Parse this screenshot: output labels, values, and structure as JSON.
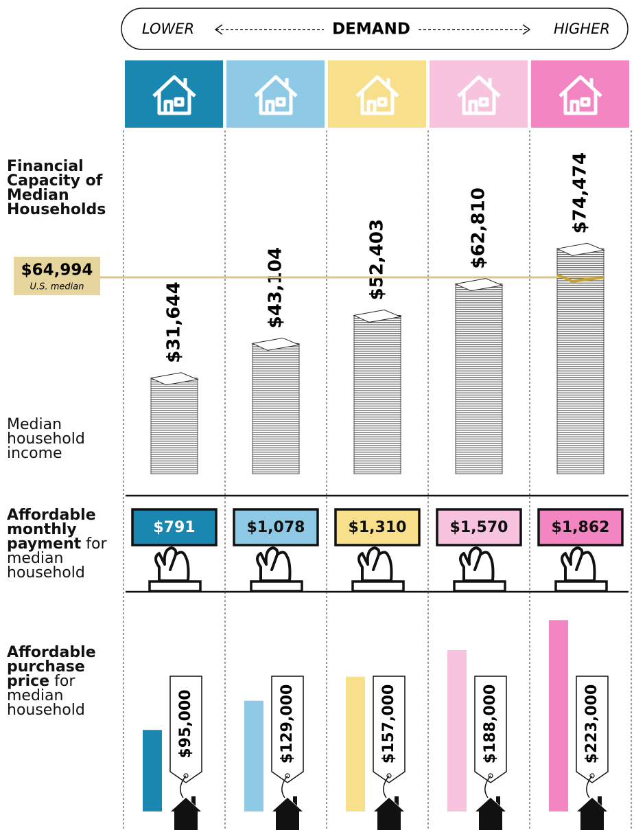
{
  "chart_data": {
    "type": "bar",
    "demand_axis": {
      "low": "LOWER",
      "title": "DEMAND",
      "high": "HIGHER"
    },
    "colors": [
      "#1a87b0",
      "#8ecae6",
      "#f7df8c",
      "#f7c3df",
      "#f285c2"
    ],
    "income": {
      "title": "Financial Capacity of Median Households",
      "label": "Median household income",
      "values": [
        31644,
        43104,
        52403,
        62810,
        74474
      ],
      "value_labels": [
        "$31,644",
        "$43,104",
        "$52,403",
        "$62,810",
        "$74,474"
      ],
      "reference": {
        "value": 64994,
        "label": "$64,994",
        "name": "U.S. median"
      }
    },
    "payment": {
      "title_bold": "Affordable monthly payment",
      "title_rest": "for median household",
      "values": [
        791,
        1078,
        1310,
        1570,
        1862
      ],
      "value_labels": [
        "$791",
        "$1,078",
        "$1,310",
        "$1,570",
        "$1,862"
      ]
    },
    "price": {
      "title_bold": "Affordable purchase price",
      "title_rest": "for median household",
      "values": [
        95000,
        129000,
        157000,
        188000,
        223000
      ],
      "value_labels": [
        "$95,000",
        "$129,000",
        "$157,000",
        "$188,000",
        "$223,000"
      ]
    }
  }
}
